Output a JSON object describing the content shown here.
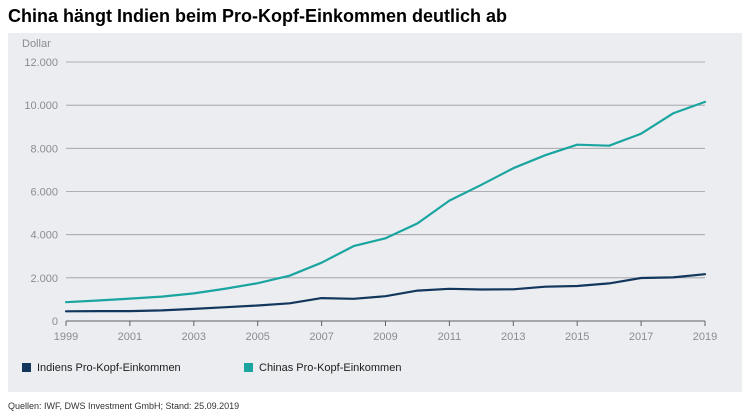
{
  "title": "China hängt Indien beim Pro-Kopf-Einkommen deutlich ab",
  "source": "Quellen: IWF, DWS Investment GmbH; Stand: 25.09.2019",
  "chart_data": {
    "type": "line",
    "title": "China hängt Indien beim Pro-Kopf-Einkommen deutlich ab",
    "ylabel": "Dollar",
    "xlabel": "",
    "xlim": [
      1999,
      2019
    ],
    "ylim": [
      0,
      12000
    ],
    "xticks": [
      1999,
      2001,
      2003,
      2005,
      2007,
      2009,
      2011,
      2013,
      2015,
      2017,
      2019
    ],
    "xtick_labels": [
      "1999",
      "2001",
      "2003",
      "2005",
      "2007",
      "2009",
      "2011",
      "2013",
      "2015",
      "2017",
      "2019"
    ],
    "yticks": [
      0,
      2000,
      4000,
      6000,
      8000,
      10000,
      12000
    ],
    "ytick_labels": [
      "0",
      "2.000",
      "4.000",
      "6.000",
      "8.000",
      "10.000",
      "12.000"
    ],
    "grid": "horizontal",
    "legend_position": "bottom-left",
    "x": [
      1999,
      2000,
      2001,
      2002,
      2003,
      2004,
      2005,
      2006,
      2007,
      2008,
      2009,
      2010,
      2011,
      2012,
      2013,
      2014,
      2015,
      2016,
      2017,
      2018,
      2019
    ],
    "series": [
      {
        "name": "Indiens Pro-Kopf-Einkommen",
        "color": "#13365c",
        "values": [
          450,
          460,
          460,
          490,
          560,
          640,
          720,
          820,
          1060,
          1030,
          1150,
          1410,
          1490,
          1460,
          1470,
          1590,
          1620,
          1740,
          1990,
          2020,
          2170
        ]
      },
      {
        "name": "Chinas Pro-Kopf-Einkommen",
        "color": "#1aa5a0",
        "values": [
          870,
          950,
          1040,
          1130,
          1280,
          1500,
          1750,
          2100,
          2700,
          3470,
          3830,
          4520,
          5580,
          6310,
          7080,
          7680,
          8170,
          8120,
          8680,
          9620,
          10150
        ]
      }
    ]
  }
}
